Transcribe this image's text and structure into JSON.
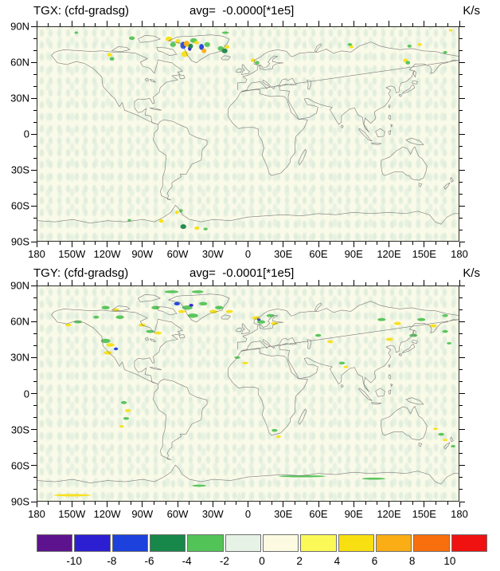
{
  "chart_data": {
    "type": "heatmap",
    "subtype": "global-lat-lon-contour-panels",
    "projection": "equirectangular",
    "panels": [
      {
        "id": "TGX",
        "title": "TGX: (cfd-gradsg)",
        "avg": "avg=  -0.0000[*1e5]",
        "units": "K/s",
        "spots": [
          [
            112.5,
            10,
            3,
            2,
            8
          ],
          [
            124.7,
            15.3,
            2.5,
            3,
            2
          ],
          [
            127.5,
            14,
            2.5,
            2.5,
            9
          ],
          [
            133.6,
            11.3,
            3,
            2,
            4
          ],
          [
            140.3,
            16.7,
            2,
            2.5,
            2
          ],
          [
            145.1,
            14.7,
            2.5,
            2,
            4
          ],
          [
            126.1,
            22.7,
            3,
            2.5,
            8
          ],
          [
            130.2,
            18,
            1.5,
            2,
            1
          ],
          [
            142.4,
            20,
            2,
            2,
            9
          ],
          [
            156.6,
            18,
            2.5,
            2,
            4
          ],
          [
            160,
            20,
            2.5,
            2,
            3
          ],
          [
            162,
            16.7,
            2,
            1.5,
            8
          ],
          [
            115.9,
            14.7,
            2.5,
            2,
            4
          ],
          [
            80.7,
            9.3,
            2.5,
            1.5,
            4
          ],
          [
            61.7,
            23.3,
            2,
            1.5,
            8
          ],
          [
            63.7,
            26.7,
            2,
            1.5,
            4
          ],
          [
            184.4,
            28,
            2,
            1.5,
            8
          ],
          [
            187.8,
            30,
            2,
            1.5,
            4
          ],
          [
            267.1,
            14.7,
            2,
            1.2,
            4
          ],
          [
            268.5,
            16.7,
            1.8,
            1.2,
            8
          ],
          [
            318,
            16,
            1.8,
            1.2,
            4
          ],
          [
            326.8,
            14.7,
            1.8,
            1.2,
            8
          ],
          [
            314.6,
            28,
            2,
            1.5,
            8
          ],
          [
            316.6,
            30,
            2,
            1.5,
            4
          ],
          [
            348.5,
            21.3,
            1.8,
            1.2,
            4
          ],
          [
            124.7,
            168,
            2.5,
            2,
            3
          ],
          [
            136.3,
            169.3,
            2,
            1.5,
            8
          ],
          [
            105.8,
            163.3,
            2,
            1.5,
            8
          ],
          [
            119.3,
            156,
            1.5,
            1.5,
            8
          ],
          [
            122.7,
            154.7,
            1.5,
            1.5,
            4
          ],
          [
            78.6,
            162.7,
            1.5,
            1.2,
            4
          ],
          [
            143.7,
            170,
            1.8,
            1.2,
            4
          ],
          [
            353.2,
            2.7,
            1.5,
            1,
            8
          ],
          [
            33.2,
            4.7,
            1.5,
            1,
            4
          ],
          [
            160.7,
            4.7,
            3,
            1,
            4
          ],
          [
            120,
            12,
            2,
            2,
            8
          ],
          [
            136,
            13,
            2,
            1.5,
            8
          ],
          [
            131,
            16,
            2,
            2,
            3
          ]
        ]
      },
      {
        "id": "TGY",
        "title": "TGY: (cfd-gradsg)",
        "avg": "avg=  -0.0001[*1e5]",
        "units": "K/s",
        "spots": [
          [
            114.6,
            4.6,
            6,
            1.2,
            4
          ],
          [
            137,
            4.6,
            5,
            1.2,
            4
          ],
          [
            119.3,
            14.6,
            2.5,
            1.5,
            2
          ],
          [
            128.1,
            17.9,
            4.5,
            1.8,
            4
          ],
          [
            141.7,
            14.6,
            3.5,
            1.5,
            4
          ],
          [
            150.5,
            21.2,
            3.5,
            1.5,
            8
          ],
          [
            132.9,
            24.6,
            4.5,
            1.8,
            4
          ],
          [
            123.4,
            21.2,
            3,
            1.3,
            8
          ],
          [
            155.3,
            17.9,
            3.5,
            1.5,
            4
          ],
          [
            164.1,
            21.2,
            3,
            1.3,
            8
          ],
          [
            131.5,
            15.9,
            1.8,
            1.2,
            1
          ],
          [
            58.3,
            17.9,
            3.5,
            1.5,
            4
          ],
          [
            67.1,
            19.9,
            3,
            1.3,
            8
          ],
          [
            50.2,
            25.9,
            2.5,
            1.2,
            4
          ],
          [
            70.5,
            25.9,
            3.5,
            1.5,
            4
          ],
          [
            89.5,
            32.5,
            3,
            1.3,
            8
          ],
          [
            101,
            17.9,
            3.5,
            1.5,
            4
          ],
          [
            34.6,
            29.9,
            3.5,
            1.3,
            4
          ],
          [
            26.4,
            32.5,
            2.5,
            1.2,
            8
          ],
          [
            58.3,
            45.8,
            4,
            1.8,
            4
          ],
          [
            62.4,
            49.2,
            3.5,
            1.5,
            8
          ],
          [
            67.1,
            52.5,
            1.8,
            1.2,
            2
          ],
          [
            60.3,
            55.8,
            3.5,
            1.5,
            8
          ],
          [
            96.3,
            37.9,
            3.5,
            1.3,
            4
          ],
          [
            103.1,
            39.2,
            3,
            1.2,
            8
          ],
          [
            187.1,
            26.6,
            3.5,
            1.5,
            8
          ],
          [
            191.2,
            29.9,
            3.5,
            1.5,
            4
          ],
          [
            189.2,
            27.9,
            1.5,
            1,
            2
          ],
          [
            199.3,
            24.6,
            3.5,
            1.3,
            4
          ],
          [
            202.7,
            31.2,
            3,
            1.3,
            8
          ],
          [
            170.8,
            59.8,
            2.5,
            1,
            4
          ],
          [
            177.6,
            64.4,
            2.5,
            1,
            8
          ],
          [
            294.2,
            27.9,
            3.5,
            1.3,
            4
          ],
          [
            307.8,
            31.2,
            3,
            1.3,
            8
          ],
          [
            328.1,
            27.9,
            3.5,
            1.3,
            4
          ],
          [
            338.3,
            33.2,
            3,
            1.3,
            8
          ],
          [
            321.4,
            41.2,
            3.5,
            1.3,
            4
          ],
          [
            301,
            44.5,
            3,
            1.3,
            8
          ],
          [
            348.5,
            37.9,
            2.5,
            1.2,
            4
          ],
          [
            348.5,
            24.6,
            2.5,
            1.2,
            4
          ],
          [
            73.9,
            97.6,
            2.5,
            1.3,
            4
          ],
          [
            77.3,
            104.3,
            2.5,
            1.2,
            8
          ],
          [
            75.9,
            110.9,
            2.5,
            1.2,
            4
          ],
          [
            71.9,
            117.6,
            2,
            1,
            8
          ],
          [
            202.7,
            120.9,
            2.5,
            1.2,
            4
          ],
          [
            206.1,
            126.2,
            2,
            1,
            8
          ],
          [
            345.1,
            124.2,
            2.5,
            1.2,
            4
          ],
          [
            348.5,
            128.9,
            2,
            1,
            8
          ],
          [
            340.3,
            119.6,
            2,
            1,
            8
          ],
          [
            355.3,
            134.2,
            2,
            1,
            4
          ],
          [
            226.4,
            159.4,
            20,
            0.9,
            4
          ],
          [
            287.5,
            161.4,
            10,
            0.9,
            4
          ],
          [
            29.8,
            175.3,
            16,
            1,
            8
          ],
          [
            138.3,
            167.3,
            6,
            0.9,
            4
          ],
          [
            240,
            41.2,
            2.5,
            1.2,
            4
          ],
          [
            250.2,
            46.5,
            2.5,
            1.2,
            8
          ],
          [
            260.3,
            64.4,
            2.5,
            1.2,
            4
          ],
          [
            263.7,
            67.7,
            2,
            1,
            8
          ],
          [
            351.9,
            47.8,
            2,
            1,
            4
          ]
        ]
      }
    ],
    "x_ticks": [
      "180",
      "150W",
      "120W",
      "90W",
      "60W",
      "30W",
      "0",
      "30E",
      "60E",
      "90E",
      "120E",
      "150E",
      "180"
    ],
    "y_ticks": [
      "90N",
      "60N",
      "30N",
      "0",
      "30S",
      "60S",
      "90S"
    ],
    "x_range_deg": [
      -180,
      180
    ],
    "y_range_deg": [
      -90,
      90
    ],
    "major_tick_deg": 30,
    "minor_tick_deg": 10,
    "spots_format": "[x:lon+180 (0-360), y:90-lat (0-180), rx, ry, color_index]",
    "colorbar": {
      "labels": [
        "-10",
        "-8",
        "-6",
        "-4",
        "-2",
        "0",
        "2",
        "4",
        "6",
        "8",
        "10"
      ],
      "colors": [
        "#5e138e",
        "#2c1fd1",
        "#1d41dd",
        "#18874a",
        "#52c356",
        "#e6f2e6",
        "#fcfbe2",
        "#faf958",
        "#f8df12",
        "#fbad16",
        "#f8700d",
        "#f01111"
      ]
    },
    "background_colors": {
      "map_base": "#fafae8",
      "map_mottle": "#e2eedd",
      "coastline": "#7d7d7d"
    }
  }
}
